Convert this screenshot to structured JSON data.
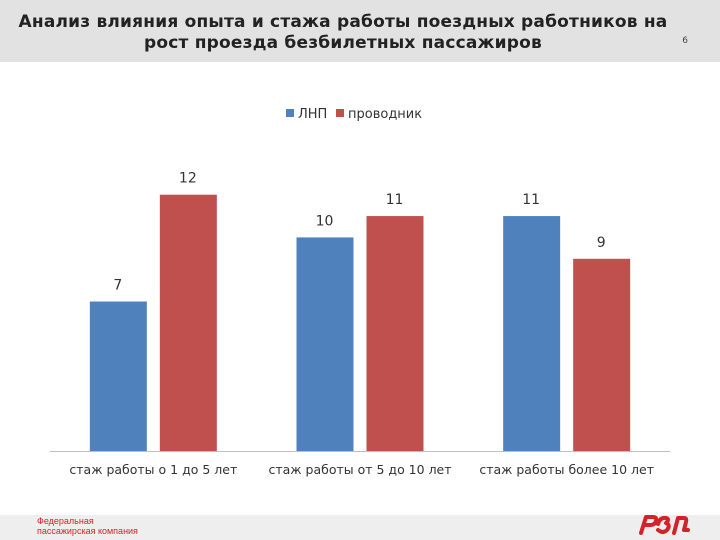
{
  "slide": {
    "title": "Анализ влияния опыта и стажа работы поездных работников на рост проезда безбилетных пассажиров",
    "page_number": "6"
  },
  "footer": {
    "company_line1": "Федеральная",
    "company_line2": "пассажирская компания",
    "logo_icon": "rzd-logo-icon"
  },
  "colors": {
    "header_band": "#e2e2e2",
    "series_lnp": "#4f81bd",
    "series_conductor": "#c0504d",
    "brand_red": "#d2232a"
  },
  "chart_data": {
    "type": "bar",
    "title": "",
    "xlabel": "",
    "ylabel": "",
    "ylim": [
      0,
      14
    ],
    "grid": false,
    "legend_position": "top-center",
    "categories": [
      "стаж работы о 1 до 5 лет",
      "стаж работы от 5 до 10 лет",
      "стаж работы более  10 лет"
    ],
    "series": [
      {
        "name": "ЛНП",
        "color": "#4f81bd",
        "values": [
          7,
          10,
          11
        ]
      },
      {
        "name": "проводник",
        "color": "#c0504d",
        "values": [
          12,
          11,
          9
        ]
      }
    ]
  }
}
